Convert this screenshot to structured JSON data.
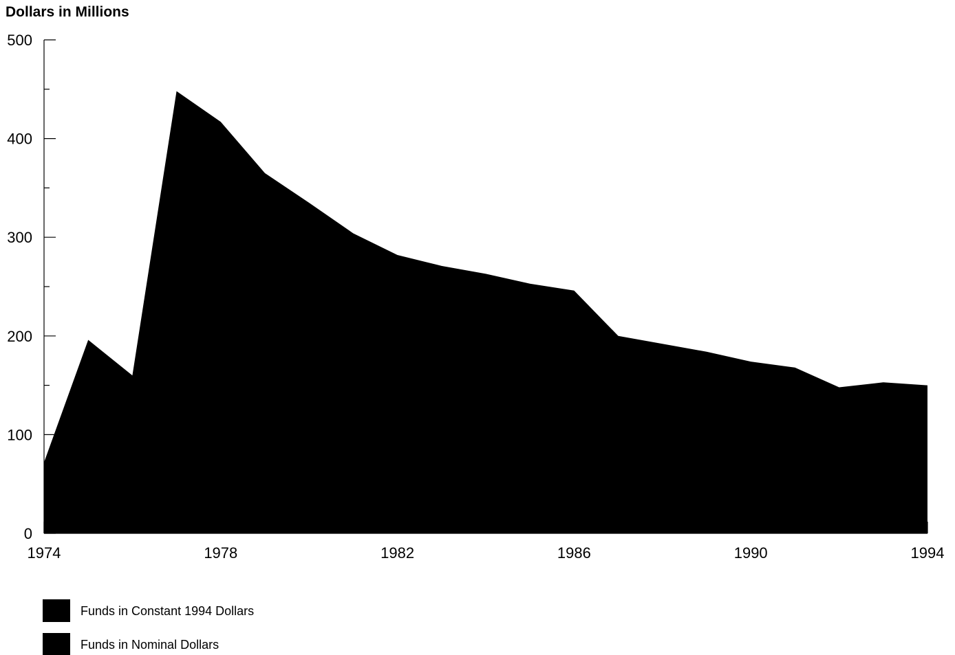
{
  "chart_data": {
    "type": "area",
    "ylabel": "Dollars in Millions",
    "xlabel": "",
    "title": "",
    "xlim": [
      1974,
      1994
    ],
    "ylim": [
      0,
      500
    ],
    "x_ticks": [
      1974,
      1978,
      1982,
      1986,
      1990,
      1994
    ],
    "y_ticks": [
      0,
      100,
      200,
      300,
      400,
      500
    ],
    "y_minor_ticks": [
      50,
      150,
      250,
      350,
      450
    ],
    "grid": false,
    "legend_position": "bottom-left",
    "x": [
      1974,
      1975,
      1976,
      1977,
      1978,
      1979,
      1980,
      1981,
      1982,
      1983,
      1984,
      1985,
      1986,
      1987,
      1988,
      1989,
      1990,
      1991,
      1992,
      1993,
      1994
    ],
    "series": [
      {
        "name": "Funds in Constant 1994 Dollars",
        "color": "#000000",
        "values": [
          72,
          196,
          160,
          448,
          417,
          365,
          335,
          304,
          282,
          271,
          263,
          253,
          246,
          200,
          192,
          184,
          174,
          168,
          148,
          153,
          150
        ]
      },
      {
        "name": "Funds in Nominal Dollars",
        "color": "#000000",
        "values": [
          null,
          null,
          null,
          null,
          null,
          null,
          null,
          null,
          null,
          null,
          null,
          null,
          null,
          null,
          null,
          null,
          null,
          null,
          null,
          null,
          null
        ]
      }
    ]
  }
}
